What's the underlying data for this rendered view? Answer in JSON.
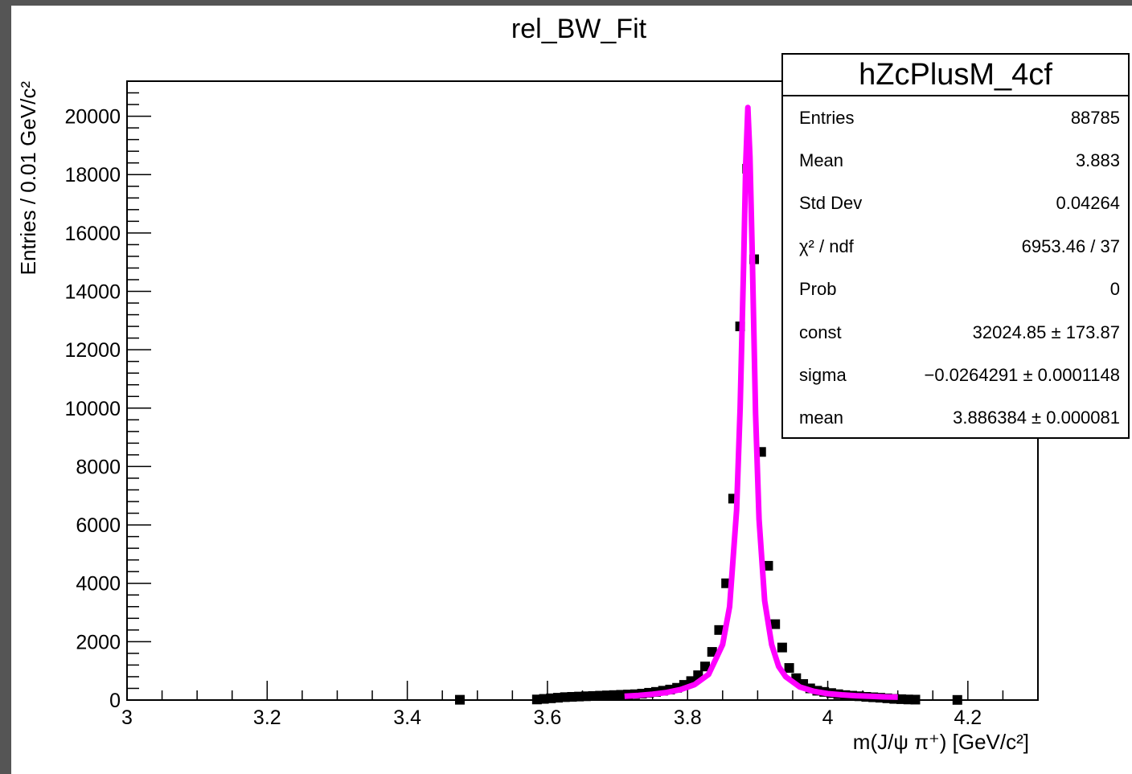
{
  "chart_data": {
    "type": "scatter",
    "title": "rel_BW_Fit",
    "xlabel": "m(J/ψ π⁺)  [GeV/c²]",
    "ylabel": "Entries / 0.01 GeV/c²",
    "xlim": [
      3.0,
      4.3
    ],
    "ylim": [
      0,
      21200
    ],
    "x_ticks": [
      "3",
      "3.2",
      "3.4",
      "3.6",
      "3.8",
      "4",
      "4.2"
    ],
    "y_ticks": [
      "0",
      "2000",
      "4000",
      "6000",
      "8000",
      "10000",
      "12000",
      "14000",
      "16000",
      "18000",
      "20000"
    ],
    "grid": false,
    "series": [
      {
        "kind": "histogram-points",
        "color": "#000000",
        "x": [
          3.475,
          3.585,
          3.595,
          3.605,
          3.615,
          3.625,
          3.635,
          3.645,
          3.655,
          3.665,
          3.675,
          3.685,
          3.695,
          3.705,
          3.715,
          3.725,
          3.735,
          3.745,
          3.755,
          3.765,
          3.775,
          3.785,
          3.795,
          3.805,
          3.815,
          3.825,
          3.835,
          3.845,
          3.855,
          3.865,
          3.875,
          3.885,
          3.895,
          3.905,
          3.915,
          3.925,
          3.935,
          3.945,
          3.955,
          3.965,
          3.975,
          3.985,
          3.995,
          4.005,
          4.015,
          4.025,
          4.035,
          4.045,
          4.055,
          4.065,
          4.075,
          4.085,
          4.095,
          4.105,
          4.115,
          4.125,
          4.185
        ],
        "y": [
          10,
          20,
          40,
          60,
          80,
          100,
          110,
          120,
          130,
          140,
          150,
          160,
          170,
          180,
          190,
          200,
          220,
          250,
          280,
          320,
          360,
          420,
          520,
          650,
          850,
          1150,
          1650,
          2400,
          4000,
          6900,
          12800,
          18200,
          15100,
          8500,
          4600,
          2600,
          1800,
          1100,
          750,
          550,
          400,
          320,
          280,
          240,
          200,
          170,
          150,
          130,
          110,
          95,
          80,
          60,
          40,
          30,
          20,
          15,
          5
        ]
      },
      {
        "kind": "fit-curve",
        "color": "#ff00ff",
        "x": [
          3.71,
          3.73,
          3.75,
          3.77,
          3.79,
          3.81,
          3.83,
          3.85,
          3.86,
          3.87,
          3.875,
          3.88,
          3.883,
          3.886,
          3.889,
          3.892,
          3.897,
          3.902,
          3.91,
          3.92,
          3.93,
          3.94,
          3.96,
          3.98,
          4.0,
          4.02,
          4.04,
          4.06,
          4.08,
          4.1
        ],
        "y": [
          130,
          160,
          200,
          260,
          360,
          530,
          880,
          1900,
          3200,
          6500,
          10000,
          15000,
          18400,
          20300,
          18600,
          15600,
          9800,
          6200,
          3400,
          1900,
          1150,
          800,
          450,
          300,
          220,
          180,
          150,
          130,
          110,
          100
        ]
      }
    ]
  },
  "stats": {
    "title": "hZcPlusM_4cf",
    "rows": [
      {
        "label": "Entries",
        "value": "88785"
      },
      {
        "label": "Mean",
        "value": "3.883"
      },
      {
        "label": "Std Dev",
        "value": "0.04264"
      },
      {
        "label": "χ² / ndf",
        "value": "6953.46 / 37"
      },
      {
        "label": "Prob",
        "value": "0"
      },
      {
        "label": "const",
        "value": "32024.85 ± 173.87"
      },
      {
        "label": "sigma",
        "value": "−0.0264291 ± 0.0001148"
      },
      {
        "label": "mean",
        "value": "3.886384 ± 0.000081"
      }
    ]
  }
}
